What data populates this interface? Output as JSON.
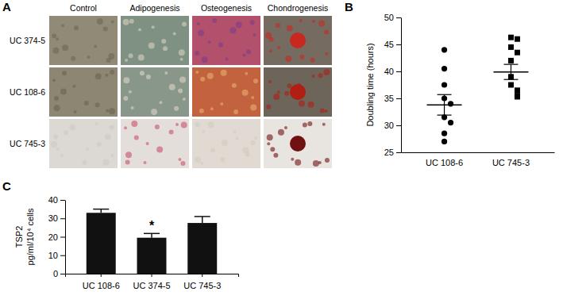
{
  "chart_data": [
    {
      "type": "image_grid",
      "title": "A",
      "columns": [
        "Control",
        "Adipogenesis",
        "Osteogenesis",
        "Chondrogenesis"
      ],
      "rows": [
        "UC 374-5",
        "UC 108-6",
        "UC 745-3"
      ]
    },
    {
      "type": "scatter",
      "title": "B",
      "ylabel": "Doubling time (hours)",
      "ylim": [
        25,
        50
      ],
      "yticks": [
        25,
        30,
        35,
        40,
        45,
        50
      ],
      "series": [
        {
          "name": "UC 108-6",
          "marker": "circle",
          "color": "#000000",
          "values": [
            44,
            40.5,
            37.5,
            35,
            34,
            31.5,
            30.5,
            28.5,
            27
          ],
          "mean": 33.8,
          "error": 1.9
        },
        {
          "name": "UC 745-3",
          "marker": "square",
          "color": "#000000",
          "values": [
            46.3,
            46,
            44.5,
            43.5,
            42,
            39,
            37.5,
            36.5,
            35.5,
            35.3
          ],
          "mean": 39.9,
          "error": 1.4
        }
      ]
    },
    {
      "type": "bar",
      "title": "C",
      "ylabel": [
        "TSP2",
        "pg/ml/10⁴ cells"
      ],
      "categories": [
        "UC 108-6",
        "UC 374-5",
        "UC 745-3"
      ],
      "values": [
        33,
        19.5,
        27.5
      ],
      "errors": [
        2,
        2.3,
        3.5
      ],
      "color": "#111111",
      "ylim": [
        0,
        40
      ],
      "yticks": [
        0,
        10,
        20,
        30,
        40
      ],
      "annotations": [
        {
          "text": "*",
          "category": 1
        }
      ]
    }
  ]
}
